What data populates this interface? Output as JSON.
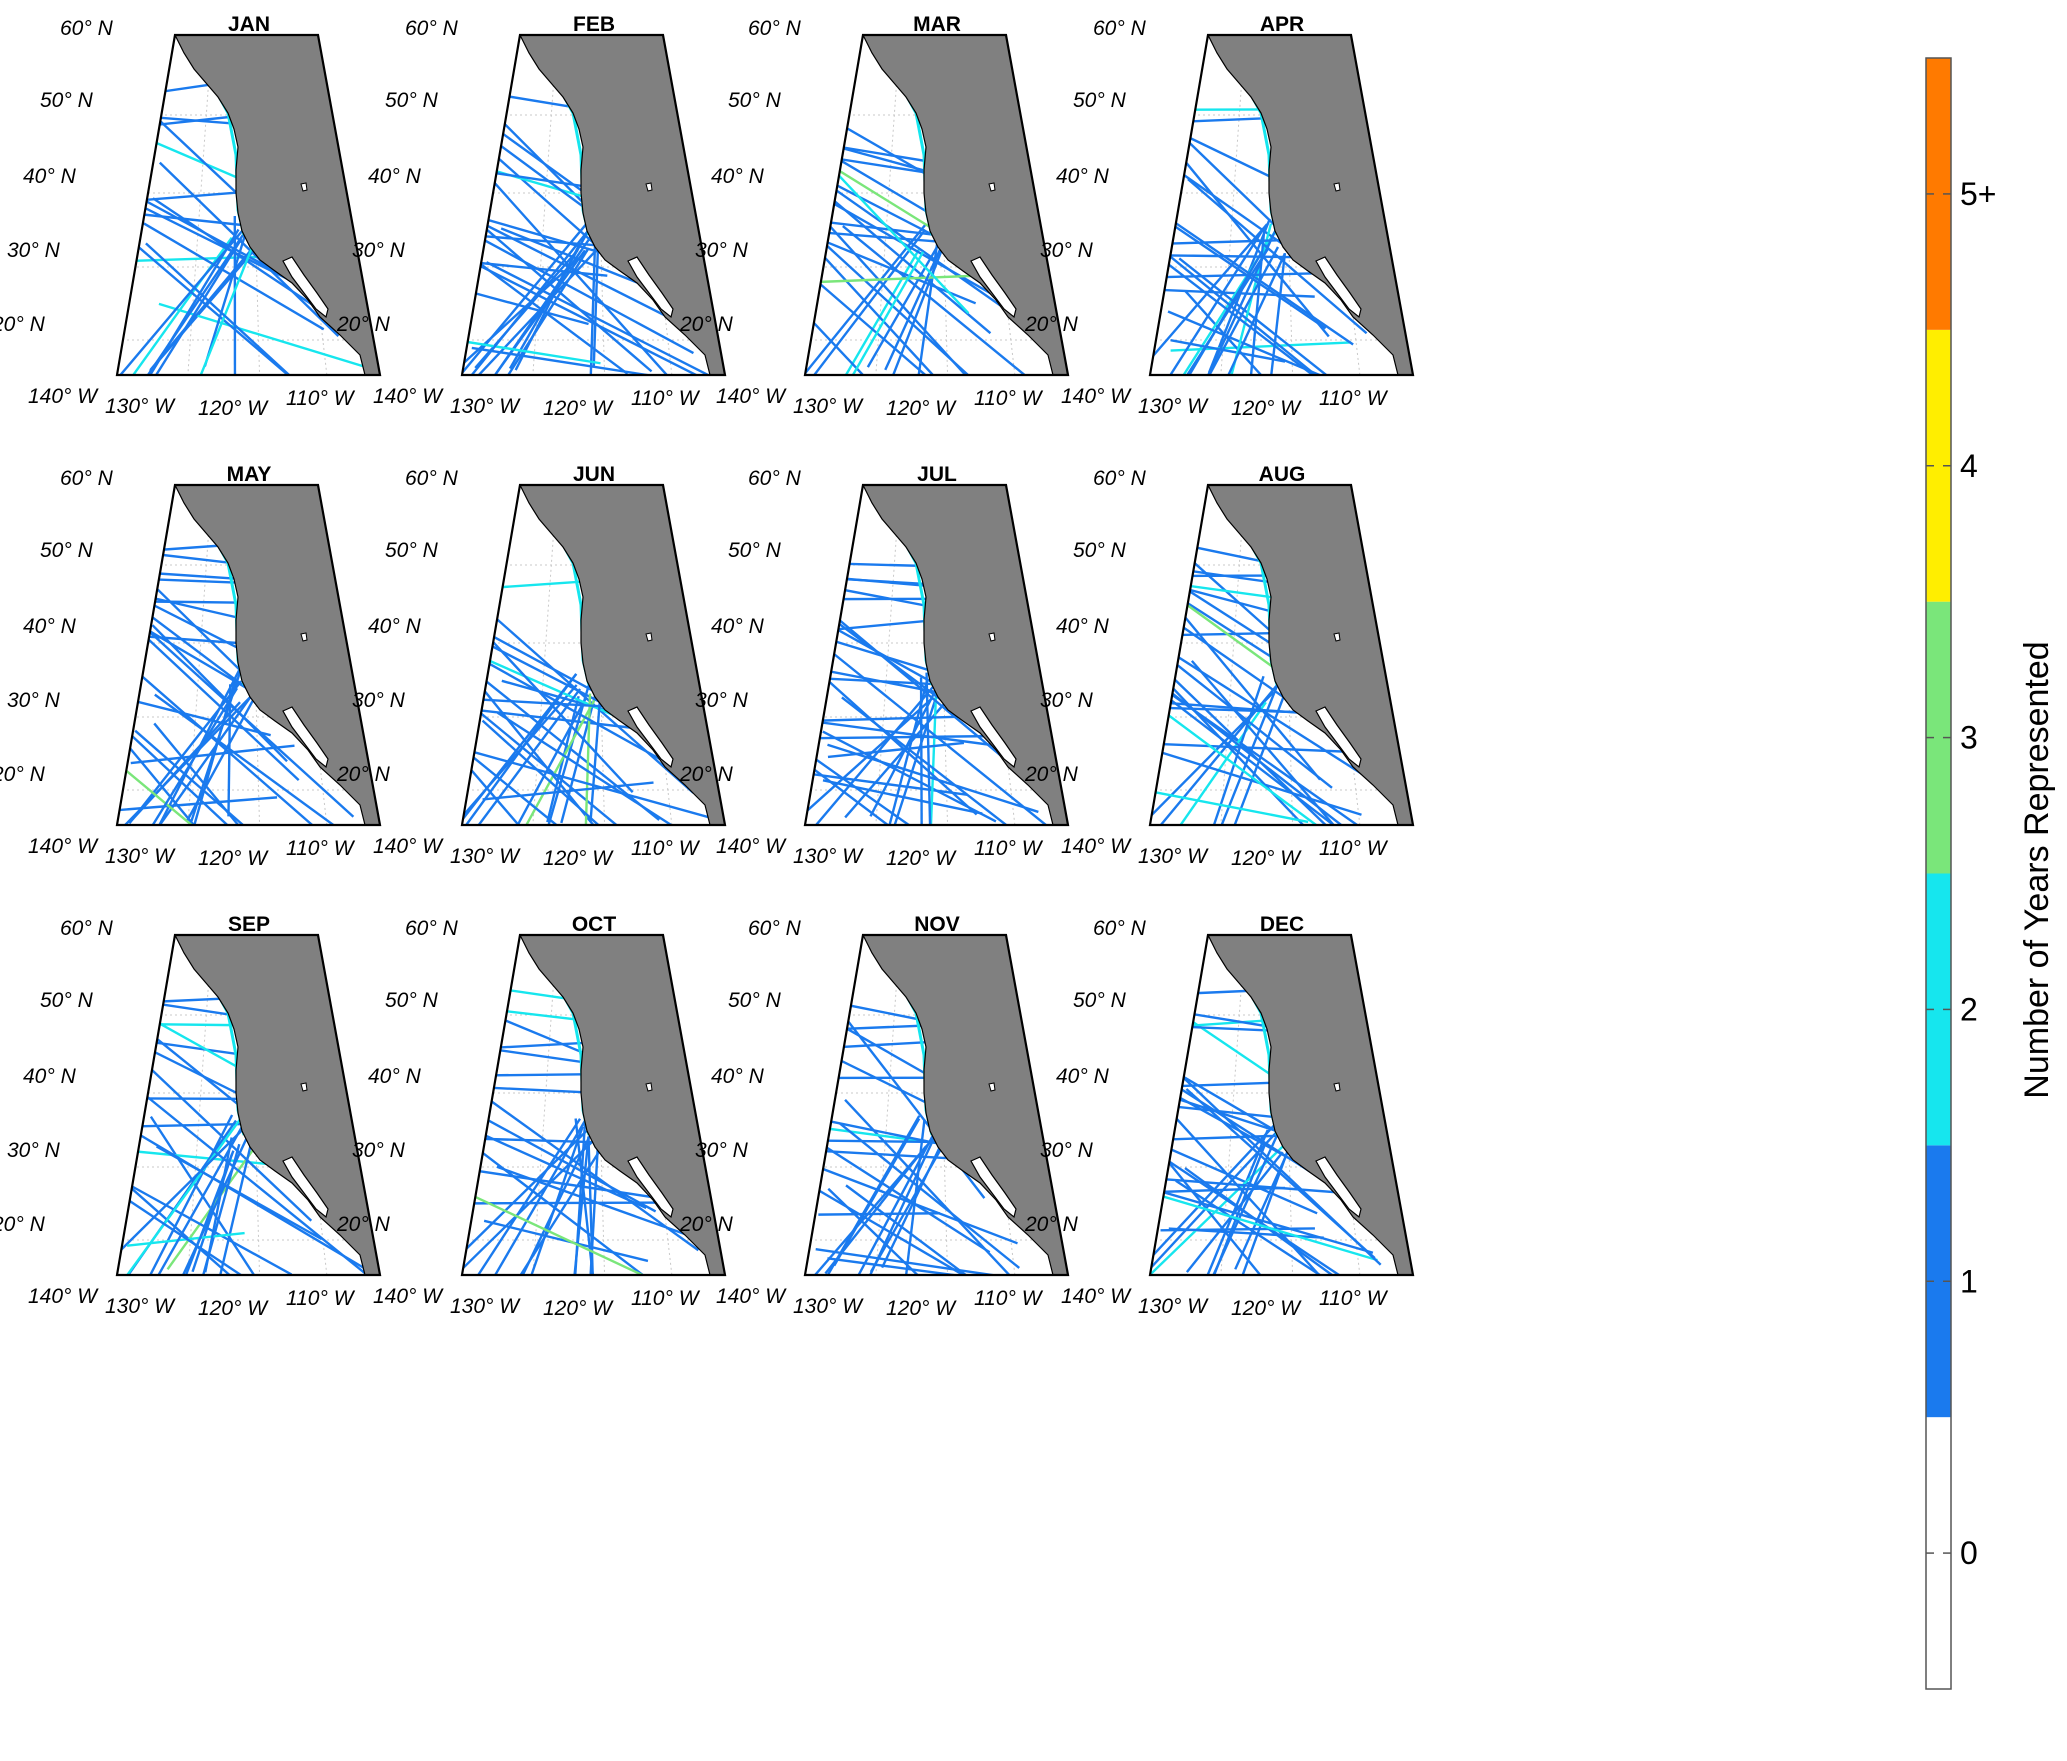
{
  "months": [
    "JAN",
    "FEB",
    "MAR",
    "APR",
    "MAY",
    "JUN",
    "JUL",
    "AUG",
    "SEP",
    "OCT",
    "NOV",
    "DEC"
  ],
  "lat_labels": [
    "60° N",
    "50° N",
    "40° N",
    "30° N",
    "20° N"
  ],
  "lon_labels": [
    "140° W",
    "130° W",
    "120° W",
    "110° W"
  ],
  "colorbar": {
    "label": "Number of Years Represented",
    "ticks": [
      "0",
      "1",
      "2",
      "3",
      "4",
      "5+"
    ],
    "colors": [
      "#ffffff",
      "#1a7aee",
      "#16e6ee",
      "#7ae67a",
      "#ffee00",
      "#ff7a00"
    ]
  },
  "colors": {
    "land": "#808080",
    "ocean": "#ffffff",
    "frame": "#000000",
    "grid": "#c8c8c8"
  }
}
